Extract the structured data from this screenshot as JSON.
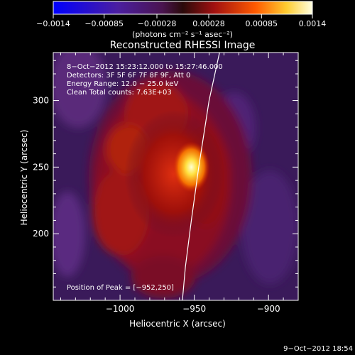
{
  "chart_data": {
    "type": "heatmap",
    "title": "Reconstructed RHESSI Image",
    "xlabel": "Heliocentric X (arcsec)",
    "ylabel": "Heliocentric Y (arcsec)",
    "xlim": [
      -1045,
      -880
    ],
    "ylim": [
      150,
      336
    ],
    "x_ticks": [
      -1000,
      -950,
      -900
    ],
    "x_tick_labels": [
      "−1000",
      "−950",
      "−900"
    ],
    "y_ticks": [
      200,
      250,
      300
    ],
    "y_tick_labels": [
      "200",
      "250",
      "300"
    ],
    "colorbar": {
      "range": [
        -0.0014,
        0.0014
      ],
      "ticks": [
        -0.0014,
        -0.00085,
        -0.00028,
        0.00028,
        0.00085,
        0.0014
      ],
      "tick_labels": [
        "−0.0014",
        "−0.00085",
        "−0.00028",
        "0.00028",
        "0.00085",
        "0.0014"
      ],
      "units": "(photons cm⁻² s⁻¹ asec⁻²)"
    },
    "peak": {
      "x": -952,
      "y": 250
    },
    "limb_curve": [
      [
        -933,
        336
      ],
      [
        -940,
        300
      ],
      [
        -947,
        250
      ],
      [
        -952,
        210
      ],
      [
        -956,
        175
      ],
      [
        -958,
        150
      ]
    ],
    "info_lines": [
      "8−Oct−2012 15:23:12.000 to 15:27:46.000",
      "Detectors: 3F 5F 6F 7F 8F 9F, Att 0",
      "Energy Range: 12.0 − 25.0 keV",
      "Clean     Total counts: 7.63E+03"
    ],
    "peak_label": "Position of Peak = [−952,250]",
    "footer_date": "9−Oct−2012 18:54",
    "colors": {
      "frame": "#ffffff",
      "limb": "#ffffff",
      "background": "#000000"
    }
  }
}
